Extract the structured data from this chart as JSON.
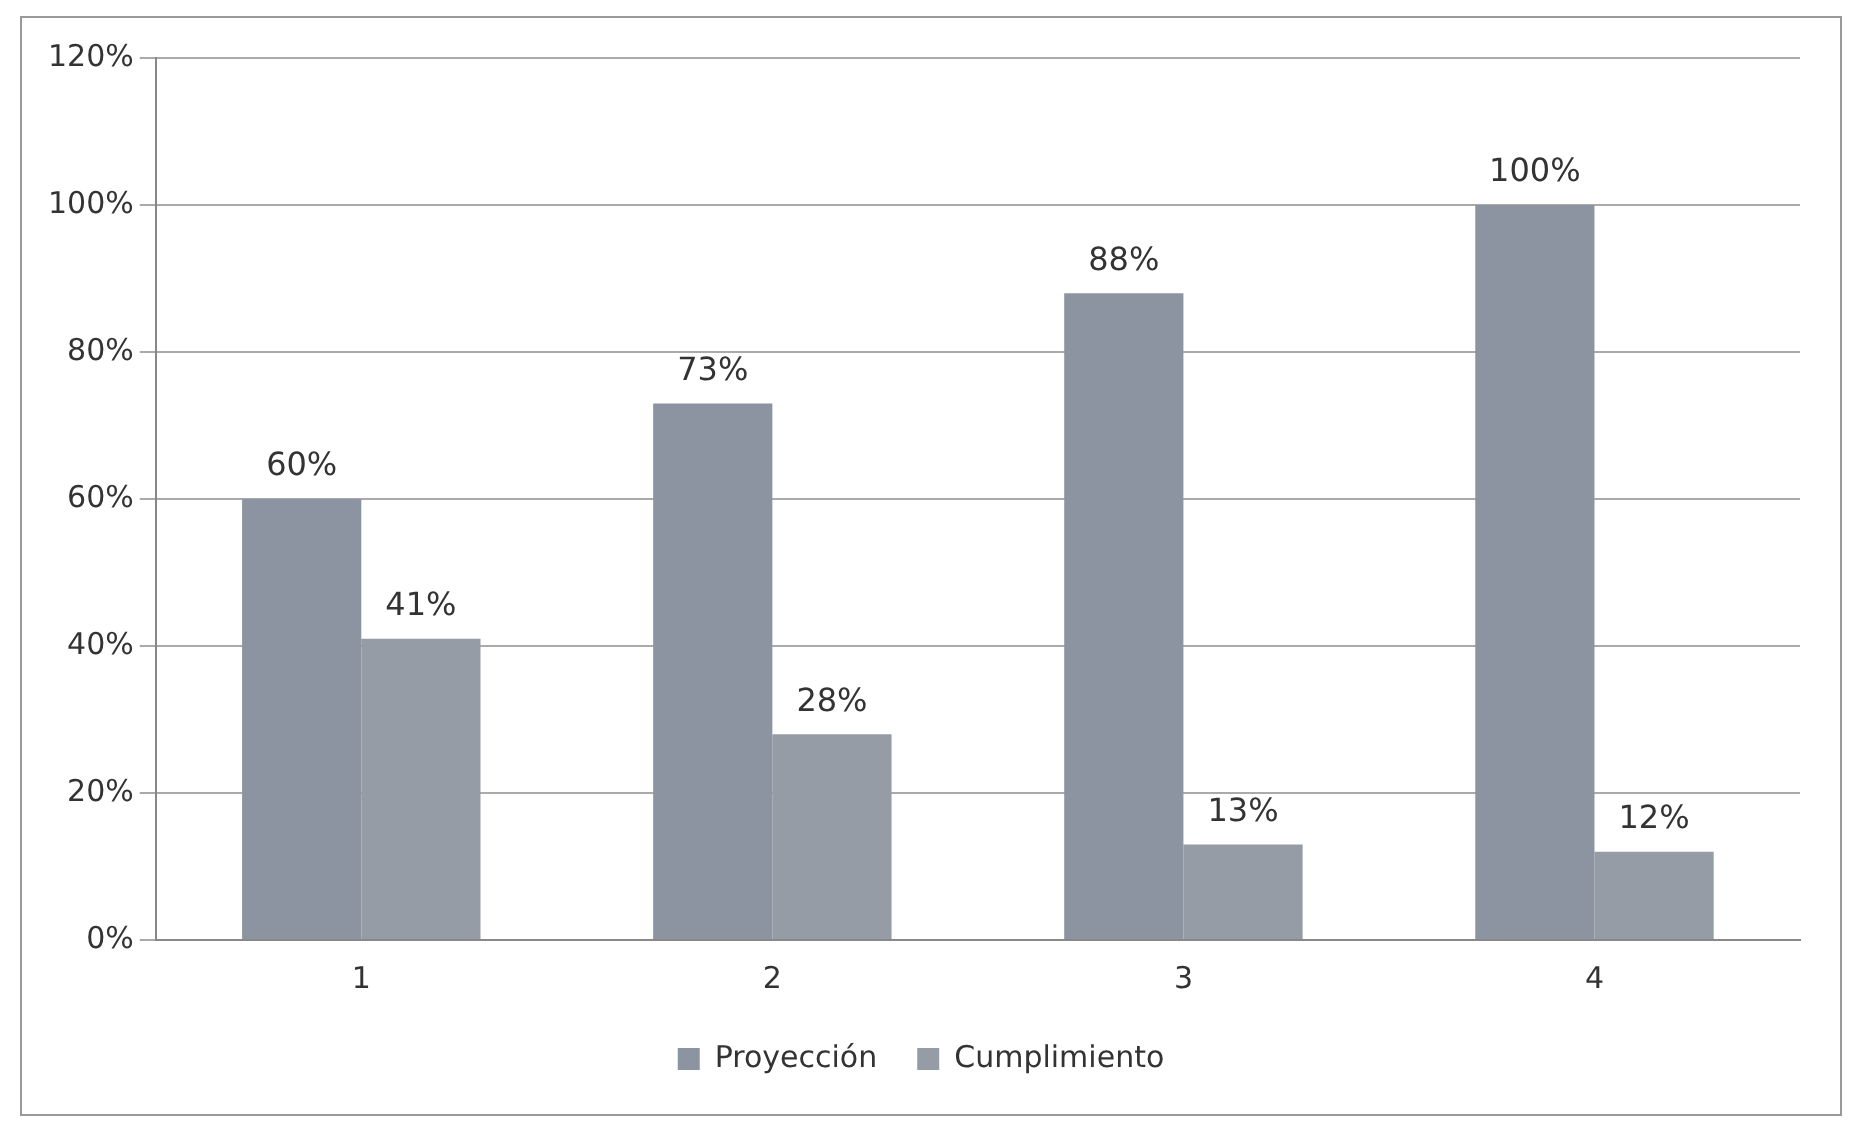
{
  "chart_data": {
    "type": "bar",
    "categories": [
      "1",
      "2",
      "3",
      "4"
    ],
    "series": [
      {
        "name": "Proyección",
        "color": "#8b94a0",
        "values": [
          60,
          73,
          88,
          100
        ],
        "value_labels": [
          "60%",
          "73%",
          "88%",
          "100%"
        ]
      },
      {
        "name": "Cumplimiento",
        "color": "#959ca6",
        "values": [
          41,
          28,
          13,
          12
        ],
        "value_labels": [
          "41%",
          "28%",
          "13%",
          "12%"
        ]
      }
    ],
    "ylim": [
      0,
      120
    ],
    "yticks": [
      {
        "value": 0,
        "label": "0%"
      },
      {
        "value": 20,
        "label": "20%"
      },
      {
        "value": 40,
        "label": "40%"
      },
      {
        "value": 60,
        "label": "60%"
      },
      {
        "value": 80,
        "label": "80%"
      },
      {
        "value": 100,
        "label": "100%"
      },
      {
        "value": 120,
        "label": "120%"
      }
    ],
    "grid": "y",
    "legend": "bottom"
  }
}
